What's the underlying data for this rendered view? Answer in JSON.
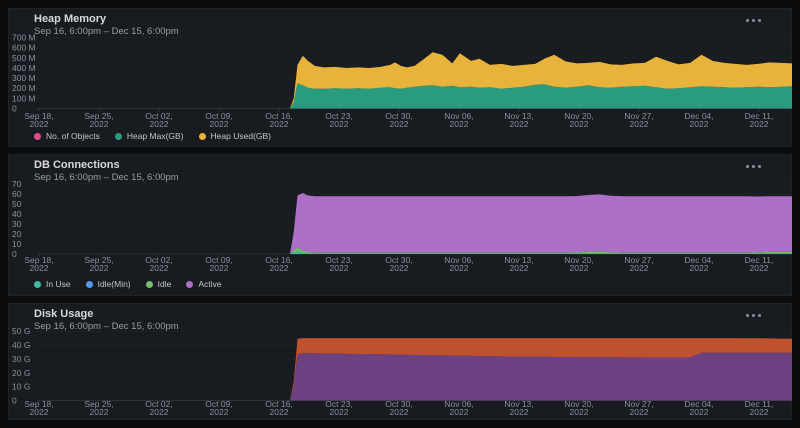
{
  "panels": [
    {
      "title": "Heap Memory",
      "subtitle": "Sep 16, 6:00pm – Dec 15, 6:00pm"
    },
    {
      "title": "DB Connections",
      "subtitle": "Sep 16, 6:00pm – Dec 15, 6:00pm"
    },
    {
      "title": "Disk Usage",
      "subtitle": "Sep 16, 6:00pm – Dec 15, 6:00pm"
    }
  ],
  "colors": {
    "page_bg": "#0b0c0e",
    "panel_bg": "#181b1f",
    "axis_text": "#8b919c",
    "heap_objects_pink": "#e74b8b",
    "heap_max_teal": "#299c80",
    "heap_used_yellow": "#e7b33b",
    "db_in_use_teal": "#41b9a5",
    "db_idle_min_blue": "#4f9cf5",
    "db_idle_green": "#73bf69",
    "db_active_purple": "#ae6fc8",
    "disk_purple": "#6b4181",
    "disk_orange": "#c0512e"
  },
  "chart_data": [
    {
      "type": "area",
      "stacked": true,
      "title": "Heap Memory",
      "legend_visible": true,
      "legend_position": "bottom",
      "grid": true,
      "ylim": [
        0,
        735
      ],
      "y_ticks": [
        {
          "label": "0",
          "v": 0
        },
        {
          "label": "100 M",
          "v": 100
        },
        {
          "label": "200 M",
          "v": 200
        },
        {
          "label": "300 M",
          "v": 300
        },
        {
          "label": "400 M",
          "v": 400
        },
        {
          "label": "500 M",
          "v": 500
        },
        {
          "label": "600 M",
          "v": 600
        },
        {
          "label": "700 M",
          "v": 700
        }
      ],
      "x_tick_labels": [
        "Sep 18,",
        "Sep 25,",
        "Oct 02,",
        "Oct 09,",
        "Oct 16,",
        "Oct 23,",
        "Oct 30,",
        "Nov 06,",
        "Nov 13,",
        "Nov 20,",
        "Nov 27,",
        "Dec 04,",
        "Dec 11,"
      ],
      "x_tick_year": "2022",
      "x": [
        0,
        0.335,
        0.34,
        0.345,
        0.352,
        0.359,
        0.368,
        0.38,
        0.395,
        0.41,
        0.425,
        0.44,
        0.455,
        0.468,
        0.474,
        0.482,
        0.49,
        0.5,
        0.513,
        0.524,
        0.537,
        0.55,
        0.56,
        0.575,
        0.586,
        0.6,
        0.615,
        0.63,
        0.645,
        0.66,
        0.672,
        0.685,
        0.7,
        0.715,
        0.73,
        0.745,
        0.76,
        0.775,
        0.79,
        0.805,
        0.82,
        0.835,
        0.85,
        0.865,
        0.88,
        0.895,
        0.91,
        0.925,
        0.94,
        0.955,
        0.97,
        0.985,
        1.0
      ],
      "series": [
        {
          "name": "No. of Objects",
          "color": "#e74b8b",
          "values": [
            0,
            0,
            0,
            0,
            0,
            0,
            0,
            0,
            0,
            0,
            0,
            0,
            0,
            0,
            0,
            0,
            0,
            0,
            0,
            0,
            0,
            0,
            0,
            0,
            0,
            0,
            0,
            0,
            0,
            0,
            0,
            0,
            0,
            0,
            0,
            0,
            0,
            0,
            0,
            0,
            0,
            0,
            0,
            0,
            0,
            0,
            0,
            0,
            0,
            0,
            0,
            0,
            0
          ]
        },
        {
          "name": "Heap Max(GB)",
          "color": "#299c80",
          "values": [
            0,
            0,
            60,
            250,
            230,
            205,
            195,
            195,
            200,
            195,
            200,
            195,
            205,
            210,
            200,
            195,
            205,
            215,
            225,
            230,
            215,
            225,
            210,
            215,
            205,
            210,
            195,
            205,
            215,
            235,
            240,
            215,
            205,
            215,
            230,
            210,
            205,
            215,
            220,
            225,
            210,
            195,
            200,
            210,
            220,
            215,
            210,
            205,
            210,
            215,
            210,
            215,
            220
          ]
        },
        {
          "name": "Heap Used(GB)",
          "color": "#e7b33b",
          "values": [
            0,
            0,
            40,
            180,
            290,
            265,
            225,
            210,
            210,
            205,
            205,
            205,
            205,
            220,
            255,
            225,
            200,
            205,
            265,
            325,
            315,
            220,
            335,
            255,
            285,
            220,
            245,
            215,
            215,
            205,
            250,
            315,
            260,
            230,
            220,
            250,
            230,
            215,
            225,
            225,
            300,
            275,
            235,
            240,
            310,
            255,
            240,
            235,
            220,
            225,
            245,
            235,
            225
          ]
        }
      ]
    },
    {
      "type": "area",
      "stacked": true,
      "title": "DB Connections",
      "legend_visible": true,
      "legend_position": "bottom",
      "grid": true,
      "ylim": [
        0,
        73
      ],
      "y_ticks": [
        {
          "label": "0",
          "v": 0
        },
        {
          "label": "10",
          "v": 10
        },
        {
          "label": "20",
          "v": 20
        },
        {
          "label": "30",
          "v": 30
        },
        {
          "label": "40",
          "v": 40
        },
        {
          "label": "50",
          "v": 50
        },
        {
          "label": "60",
          "v": 60
        },
        {
          "label": "70",
          "v": 70
        }
      ],
      "x_tick_labels": [
        "Sep 18,",
        "Sep 25,",
        "Oct 02,",
        "Oct 09,",
        "Oct 16,",
        "Oct 23,",
        "Oct 30,",
        "Nov 06,",
        "Nov 13,",
        "Nov 20,",
        "Nov 27,",
        "Dec 04,",
        "Dec 11,"
      ],
      "x_tick_year": "2022",
      "x": [
        0,
        0.335,
        0.34,
        0.345,
        0.352,
        0.359,
        0.368,
        0.38,
        0.395,
        0.41,
        0.425,
        0.44,
        0.455,
        0.468,
        0.474,
        0.482,
        0.49,
        0.5,
        0.513,
        0.524,
        0.537,
        0.55,
        0.56,
        0.575,
        0.586,
        0.6,
        0.615,
        0.63,
        0.645,
        0.66,
        0.672,
        0.685,
        0.7,
        0.715,
        0.73,
        0.745,
        0.76,
        0.775,
        0.79,
        0.805,
        0.82,
        0.835,
        0.85,
        0.865,
        0.88,
        0.895,
        0.91,
        0.925,
        0.94,
        0.955,
        0.97,
        0.985,
        1.0
      ],
      "series": [
        {
          "name": "In Use",
          "color": "#41b9a5",
          "values": [
            0,
            0,
            1.5,
            2.5,
            1,
            0.5,
            0.3,
            0.3,
            0.3,
            0.3,
            0.3,
            0.3,
            0.3,
            0.3,
            0.3,
            0.3,
            0.3,
            0.3,
            0.3,
            0.3,
            0.3,
            0.3,
            0.3,
            0.3,
            0.3,
            0.3,
            0.3,
            0.3,
            0.3,
            0.3,
            0.3,
            0.3,
            0.3,
            0.3,
            0.3,
            0.3,
            0.3,
            0.3,
            0.3,
            0.3,
            0.3,
            0.3,
            0.3,
            0.3,
            0.3,
            0.3,
            0.3,
            0.3,
            0.3,
            0.3,
            0.3,
            0.3,
            0.3
          ]
        },
        {
          "name": "Idle(Min)",
          "color": "#4f9cf5",
          "values": [
            0,
            0,
            0,
            0,
            0,
            0,
            0,
            0,
            0,
            0,
            0,
            0,
            0,
            0,
            0,
            0,
            0,
            0,
            0,
            0,
            0,
            0,
            0,
            0,
            0,
            0,
            0,
            0,
            0,
            0,
            0,
            0,
            0,
            0,
            0,
            0,
            0,
            0,
            0,
            0,
            0,
            0,
            0,
            0,
            0,
            0,
            0,
            0,
            0,
            0,
            0,
            0,
            0
          ]
        },
        {
          "name": "Idle",
          "color": "#73bf69",
          "values": [
            0,
            0,
            2,
            4,
            2.5,
            1.5,
            1,
            1,
            1,
            1,
            1,
            1,
            1,
            1,
            1,
            1,
            1,
            1,
            1,
            1,
            1,
            1,
            1,
            1,
            1,
            1,
            1,
            1,
            1,
            1,
            1,
            1,
            1,
            1.2,
            2.2,
            2.5,
            1.5,
            1,
            1,
            1,
            1,
            1,
            1,
            1,
            1,
            1,
            1,
            1,
            1,
            1.3,
            1.8,
            2,
            2
          ]
        },
        {
          "name": "Active",
          "color": "#ae6fc8",
          "values": [
            0,
            0,
            18,
            52,
            57.5,
            56.5,
            56.4,
            56.4,
            56.4,
            56.4,
            56.4,
            56.4,
            56.4,
            56.4,
            56.4,
            56.4,
            56.4,
            56.4,
            56.4,
            56.4,
            56.4,
            56.4,
            56.4,
            56.4,
            56.4,
            56.4,
            56.4,
            56.4,
            56.4,
            56.4,
            56.4,
            56.4,
            56.4,
            56.4,
            56.5,
            56.8,
            56.4,
            56.4,
            56.4,
            56.4,
            56.4,
            56.4,
            56.4,
            56.4,
            56.4,
            56.4,
            56.4,
            56.4,
            56.4,
            55.9,
            55.6,
            55.4,
            55.4
          ]
        }
      ]
    },
    {
      "type": "area",
      "stacked": true,
      "title": "Disk Usage",
      "legend_visible": false,
      "legend_position": "bottom",
      "grid": true,
      "ylim": [
        0,
        53
      ],
      "y_ticks": [
        {
          "label": "0",
          "v": 0
        },
        {
          "label": "10 G",
          "v": 10
        },
        {
          "label": "20 G",
          "v": 20
        },
        {
          "label": "30 G",
          "v": 30
        },
        {
          "label": "40 G",
          "v": 40
        },
        {
          "label": "50 G",
          "v": 50
        }
      ],
      "x_tick_labels": [
        "Sep 18,",
        "Sep 25,",
        "Oct 02,",
        "Oct 09,",
        "Oct 16,",
        "Oct 23,",
        "Oct 30,",
        "Nov 06,",
        "Nov 13,",
        "Nov 20,",
        "Nov 27,",
        "Dec 04,",
        "Dec 11,"
      ],
      "x_tick_year": "2022",
      "x": [
        0,
        0.335,
        0.34,
        0.345,
        0.352,
        0.359,
        0.368,
        0.38,
        0.395,
        0.41,
        0.425,
        0.44,
        0.455,
        0.468,
        0.474,
        0.482,
        0.49,
        0.5,
        0.513,
        0.524,
        0.537,
        0.55,
        0.56,
        0.575,
        0.586,
        0.6,
        0.615,
        0.63,
        0.645,
        0.66,
        0.672,
        0.685,
        0.7,
        0.715,
        0.73,
        0.745,
        0.76,
        0.775,
        0.79,
        0.805,
        0.82,
        0.835,
        0.85,
        0.865,
        0.88,
        0.895,
        0.91,
        0.925,
        0.94,
        0.955,
        0.97,
        0.985,
        1.0
      ],
      "series": [
        {
          "name": "",
          "color": "#6b4181",
          "values": [
            0,
            0,
            10,
            33.5,
            34,
            34,
            34,
            33.8,
            33.8,
            33.6,
            33.5,
            33.5,
            33.4,
            33.2,
            33.2,
            33,
            33,
            32.8,
            32.8,
            32.6,
            32.5,
            32.4,
            32.3,
            32.2,
            32,
            31.9,
            31.8,
            31.7,
            31.6,
            31.5,
            31.5,
            31.4,
            31.4,
            31.3,
            31.3,
            31.2,
            31.2,
            31.1,
            31.1,
            31,
            31,
            31,
            31,
            31,
            34.4,
            34.5,
            34.5,
            34.5,
            34.5,
            34.5,
            34.5,
            34.4,
            34.4
          ]
        },
        {
          "name": "",
          "color": "#c0512e",
          "values": [
            0,
            0,
            3.5,
            11,
            11,
            11,
            11,
            11.2,
            11.2,
            11.4,
            11.5,
            11.5,
            11.6,
            11.8,
            11.8,
            12,
            12,
            12.2,
            12.2,
            12.4,
            12.5,
            12.6,
            12.7,
            12.8,
            13,
            13.1,
            13.2,
            13.3,
            13.4,
            13.5,
            13.5,
            13.6,
            13.6,
            13.7,
            13.7,
            13.8,
            13.8,
            13.9,
            13.9,
            14,
            14,
            14,
            14,
            14,
            10.6,
            10.5,
            10.5,
            10.5,
            10.4,
            10.4,
            10.3,
            10.2,
            10.1
          ]
        }
      ]
    }
  ]
}
